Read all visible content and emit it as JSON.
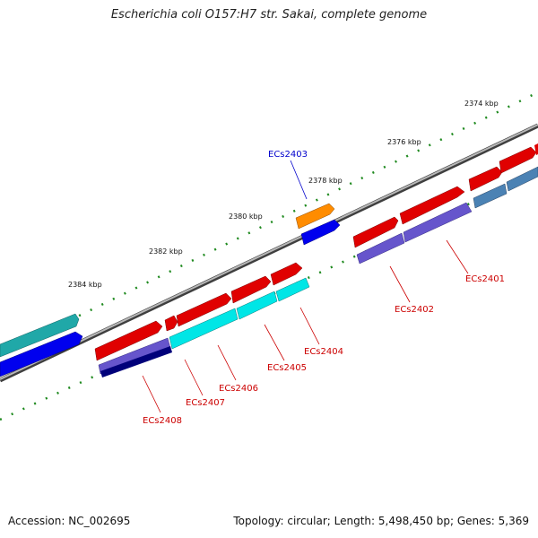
{
  "title": "Escherichia coli O157:H7 str. Sakai, complete genome",
  "accession": "Accession: NC_002695",
  "summary": "Topology: circular; Length: 5,498,450 bp; Genes: 5,369",
  "kbp_labels": [
    "2374 kbp",
    "2376 kbp",
    "2378 kbp",
    "2380 kbp",
    "2382 kbp",
    "2384 kbp"
  ],
  "gene_labels": {
    "ECs2401": "ECs2401",
    "ECs2402": "ECs2402",
    "ECs2403": "ECs2403",
    "ECs2404": "ECs2404",
    "ECs2405": "ECs2405",
    "ECs2406": "ECs2406",
    "ECs2407": "ECs2407",
    "ECs2408": "ECs2408"
  },
  "colors": {
    "forward_gene": "#e00000",
    "highlight_gene": "#ff8c00",
    "reverse_gene_blue": "#0000ee",
    "cyan_gene": "#00e6e6",
    "purple_gene": "#6655cc",
    "steel_gene": "#4b82b4",
    "navy_gene": "#00007a",
    "teal_gene": "#20a8a8",
    "backbone": "#808080",
    "ticks": "#1f8a1f",
    "label_red": "#cc0000",
    "label_blue": "#0000cc"
  }
}
